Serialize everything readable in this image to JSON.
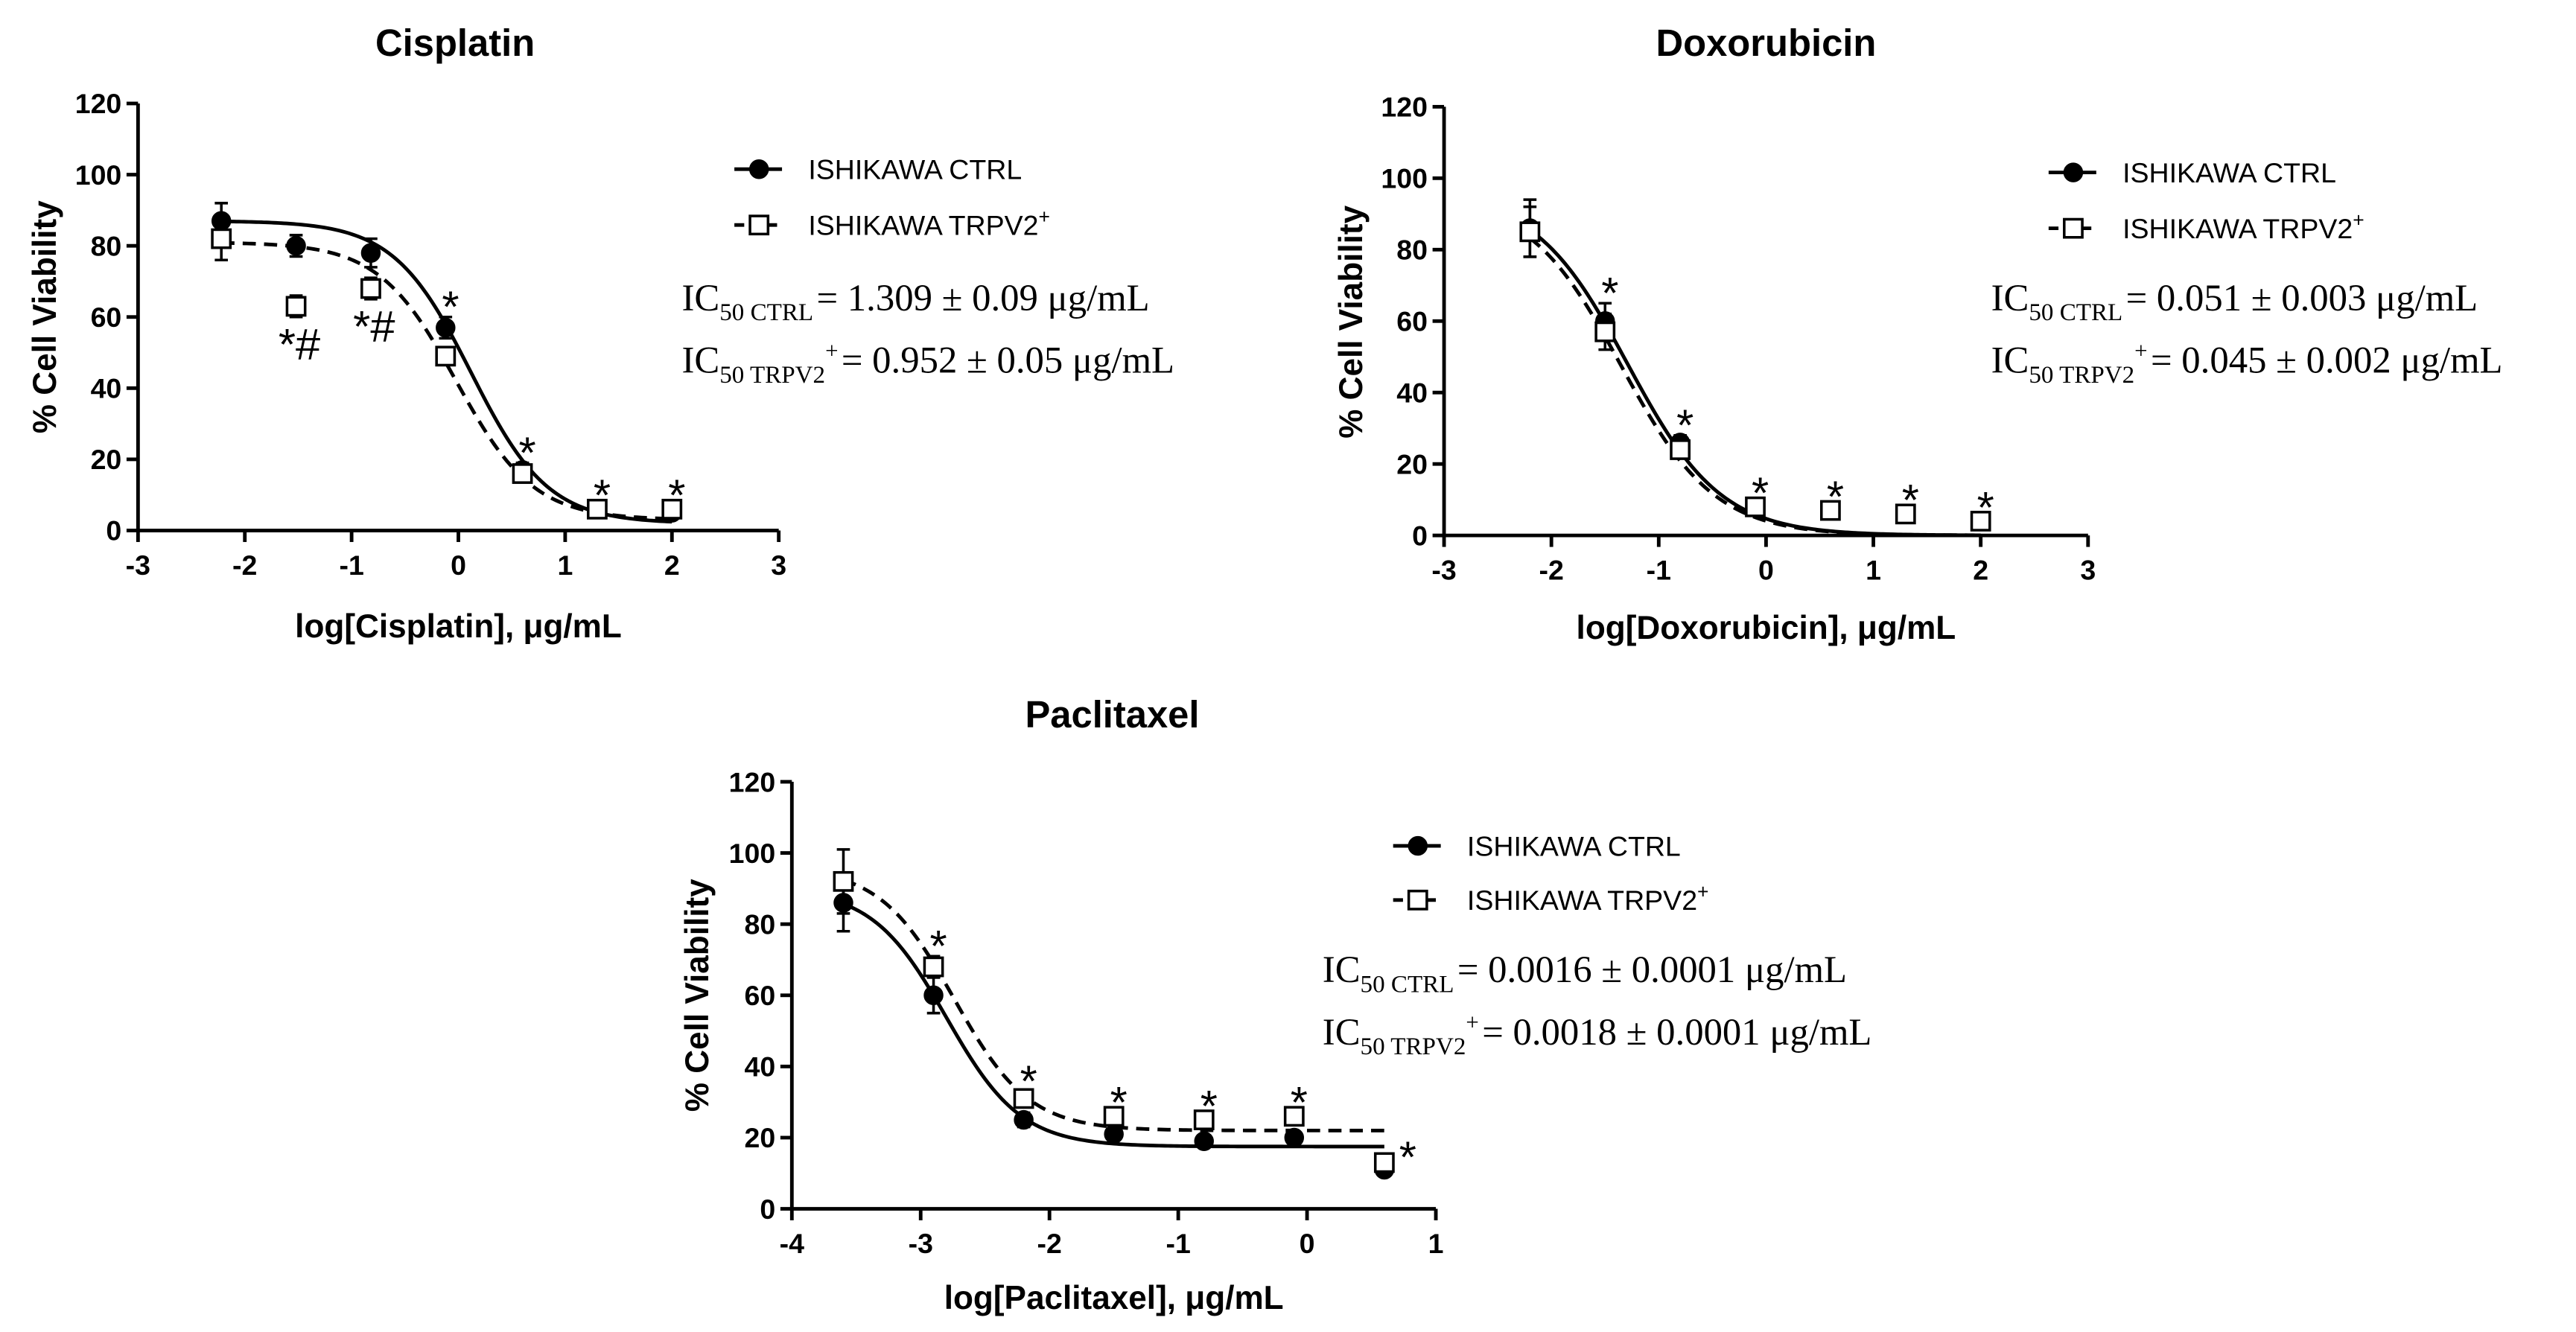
{
  "colors": {
    "ink": "#000000",
    "background": "#ffffff",
    "open_marker_fill": "#ffffff"
  },
  "chart_data": [
    {
      "type": "scatter",
      "title": "Cisplatin",
      "xlabel": "log[Cisplatin], μg/mL",
      "ylabel": "% Cell Viability",
      "xlim": [
        -3,
        3
      ],
      "ylim": [
        0,
        120
      ],
      "xticks": [
        -3,
        -2,
        -1,
        0,
        1,
        2,
        3
      ],
      "yticks": [
        0,
        20,
        40,
        60,
        80,
        100,
        120
      ],
      "grid": false,
      "legend_position": "right",
      "series": [
        {
          "name": "ISHIKAWA CTRL",
          "marker_icon": "filled-circle-icon",
          "dashed": false,
          "x": [
            -2.22,
            -1.52,
            -0.82,
            -0.12,
            0.6,
            1.3,
            2.0
          ],
          "y": [
            87,
            80,
            78,
            57,
            17,
            6,
            5
          ],
          "err": [
            5,
            3,
            4,
            3,
            2,
            1,
            1
          ],
          "fit": {
            "top": 87,
            "bottom": 2,
            "log_ic50": 0.117,
            "hill": 1.2,
            "x_range": [
              -2.22,
              2.0
            ]
          }
        },
        {
          "name": "ISHIKAWA TRPV2",
          "name_sup": "+",
          "marker_icon": "open-square-icon",
          "dashed": true,
          "x": [
            -2.22,
            -1.52,
            -0.82,
            -0.12,
            0.6,
            1.3,
            2.0
          ],
          "y": [
            82,
            63,
            68,
            49,
            16,
            6,
            6
          ],
          "err": [
            6,
            3,
            3,
            2,
            2,
            1,
            1
          ],
          "fit": {
            "top": 81,
            "bottom": 3,
            "log_ic50": -0.021,
            "hill": 1.2,
            "x_range": [
              -2.22,
              2.0
            ]
          }
        }
      ],
      "annotations": [
        {
          "x": -1.52,
          "label": "*#",
          "placement": "below"
        },
        {
          "x": -0.82,
          "label": "*#",
          "placement": "below"
        },
        {
          "x": -0.12,
          "label": "*",
          "placement": "above"
        },
        {
          "x": 0.6,
          "label": "*",
          "placement": "above"
        },
        {
          "x": 1.3,
          "label": "*",
          "placement": "above"
        },
        {
          "x": 2.0,
          "label": "*",
          "placement": "above"
        }
      ],
      "ic50": [
        {
          "prefix": "IC",
          "sub": "50 CTRL",
          "value": "= 1.309 ± 0.09 μg/mL"
        },
        {
          "prefix": "IC",
          "sub": "50 TRPV2",
          "sup": "+",
          "value": "= 0.952 ± 0.05 μg/mL"
        }
      ]
    },
    {
      "type": "scatter",
      "title": "Doxorubicin",
      "xlabel": "log[Doxorubicin], μg/mL",
      "ylabel": "% Cell Viability",
      "xlim": [
        -3,
        3
      ],
      "ylim": [
        0,
        120
      ],
      "xticks": [
        -3,
        -2,
        -1,
        0,
        1,
        2,
        3
      ],
      "yticks": [
        0,
        20,
        40,
        60,
        80,
        100,
        120
      ],
      "grid": false,
      "legend_position": "right",
      "series": [
        {
          "name": "ISHIKAWA CTRL",
          "marker_icon": "filled-circle-icon",
          "dashed": false,
          "x": [
            -2.2,
            -1.5,
            -0.8,
            -0.1,
            0.6,
            1.3,
            2.0
          ],
          "y": [
            86,
            60,
            26,
            8,
            7,
            6,
            4
          ],
          "err": [
            8,
            5,
            2,
            1,
            1,
            1,
            1
          ],
          "fit": {
            "top": 96,
            "bottom": 0,
            "log_ic50": -1.29,
            "hill": 1.0,
            "x_range": [
              -2.2,
              2.0
            ]
          }
        },
        {
          "name": "ISHIKAWA TRPV2",
          "name_sup": "+",
          "marker_icon": "open-square-icon",
          "dashed": true,
          "x": [
            -2.2,
            -1.5,
            -0.8,
            -0.1,
            0.6,
            1.3,
            2.0
          ],
          "y": [
            85,
            57,
            24,
            8,
            7,
            6,
            4
          ],
          "err": [
            7,
            5,
            2,
            1,
            1,
            1,
            1
          ],
          "fit": {
            "top": 95,
            "bottom": 0,
            "log_ic50": -1.35,
            "hill": 1.0,
            "x_range": [
              -2.2,
              2.0
            ]
          }
        }
      ],
      "annotations": [
        {
          "x": -1.5,
          "label": "*",
          "placement": "above"
        },
        {
          "x": -0.8,
          "label": "*",
          "placement": "above"
        },
        {
          "x": -0.1,
          "label": "*",
          "placement": "above"
        },
        {
          "x": 0.6,
          "label": "*",
          "placement": "above"
        },
        {
          "x": 1.3,
          "label": "*",
          "placement": "above"
        },
        {
          "x": 2.0,
          "label": "*",
          "placement": "above"
        }
      ],
      "ic50": [
        {
          "prefix": "IC",
          "sub": "50 CTRL",
          "value": "= 0.051 ± 0.003 μg/mL"
        },
        {
          "prefix": "IC",
          "sub": "50 TRPV2",
          "sup": "+",
          "value": "= 0.045 ± 0.002 μg/mL"
        }
      ]
    },
    {
      "type": "scatter",
      "title": "Paclitaxel",
      "xlabel": "log[Paclitaxel], μg/mL",
      "ylabel": "% Cell Viability",
      "xlim": [
        -4,
        1
      ],
      "ylim": [
        0,
        120
      ],
      "xticks": [
        -4,
        -3,
        -2,
        -1,
        0,
        1
      ],
      "yticks": [
        0,
        20,
        40,
        60,
        80,
        100,
        120
      ],
      "grid": false,
      "legend_position": "right",
      "series": [
        {
          "name": "ISHIKAWA CTRL",
          "marker_icon": "filled-circle-icon",
          "dashed": false,
          "x": [
            -3.6,
            -2.9,
            -2.2,
            -1.5,
            -0.8,
            -0.1,
            0.6
          ],
          "y": [
            86,
            60,
            25,
            21,
            19,
            20,
            11
          ],
          "err": [
            8,
            5,
            2,
            1,
            1,
            1,
            1
          ],
          "fit": {
            "top": 90,
            "bottom": 17.5,
            "log_ic50": -2.8,
            "hill": 1.5,
            "x_range": [
              -3.6,
              0.6
            ]
          }
        },
        {
          "name": "ISHIKAWA TRPV2",
          "name_sup": "+",
          "marker_icon": "open-square-icon",
          "dashed": true,
          "x": [
            -3.6,
            -2.9,
            -2.2,
            -1.5,
            -0.8,
            -0.1,
            0.6
          ],
          "y": [
            92,
            68,
            31,
            26,
            25,
            26,
            13
          ],
          "err": [
            9,
            3,
            2,
            1,
            1,
            1,
            1
          ],
          "fit": {
            "top": 96,
            "bottom": 22,
            "log_ic50": -2.74,
            "hill": 1.5,
            "x_range": [
              -3.6,
              0.6
            ]
          }
        }
      ],
      "annotations": [
        {
          "x": -2.9,
          "label": "*",
          "placement": "above"
        },
        {
          "x": -2.2,
          "label": "*",
          "placement": "above"
        },
        {
          "x": -1.5,
          "label": "*",
          "placement": "above"
        },
        {
          "x": -0.8,
          "label": "*",
          "placement": "above"
        },
        {
          "x": -0.1,
          "label": "*",
          "placement": "above"
        },
        {
          "x": 0.6,
          "label": "*",
          "placement": "right"
        }
      ],
      "ic50": [
        {
          "prefix": "IC",
          "sub": "50 CTRL",
          "value": "= 0.0016 ± 0.0001 μg/mL"
        },
        {
          "prefix": "IC",
          "sub": "50 TRPV2",
          "sup": "+",
          "value": "= 0.0018 ± 0.0001 μg/mL"
        }
      ]
    }
  ]
}
